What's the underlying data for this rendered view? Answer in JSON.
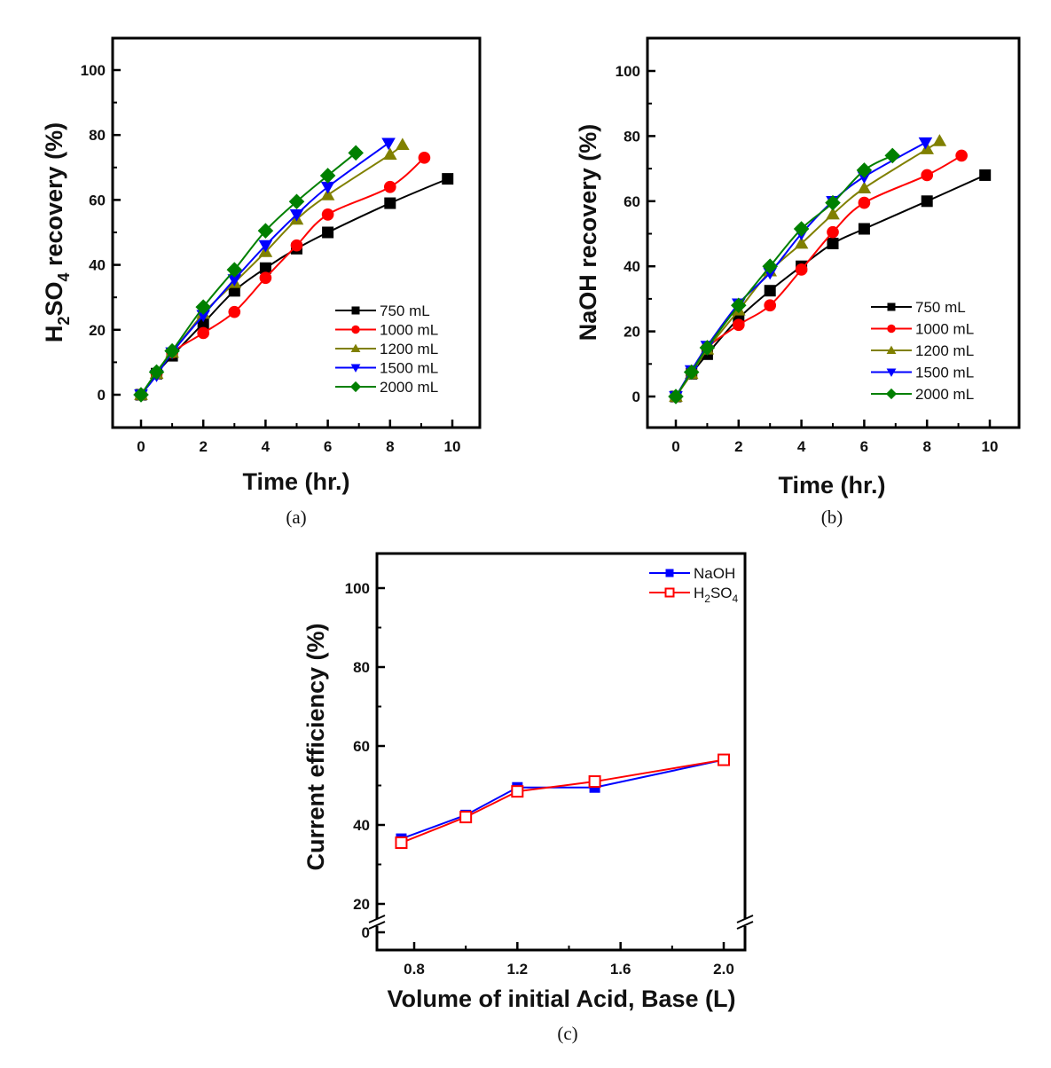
{
  "chart_data": [
    {
      "type": "line",
      "panel": "a",
      "caption": "(a)",
      "title": "",
      "xlabel": "Time (hr.)",
      "ylabel_parts": [
        "H",
        "2",
        "SO",
        "4",
        " recovery (%)"
      ],
      "ylabel": "H2SO4 recovery (%)",
      "xlim": [
        -0.7,
        10.6
      ],
      "ylim": [
        -10,
        110
      ],
      "xticks": [
        "0",
        "2",
        "4",
        "6",
        "8",
        "10"
      ],
      "xtick_values": [
        0,
        2,
        4,
        6,
        8,
        10
      ],
      "yticks": [
        "0",
        "20",
        "40",
        "60",
        "80",
        "100"
      ],
      "ytick_values": [
        0,
        20,
        40,
        60,
        80,
        100
      ],
      "grid": false,
      "legend_position": "bottom-right",
      "series": [
        {
          "name": "750 mL",
          "color": "#000000",
          "marker": "square",
          "x": [
            0,
            0.5,
            1,
            2,
            3,
            4,
            5,
            6,
            8,
            9.85
          ],
          "y": [
            0,
            6.5,
            12,
            22,
            32,
            39,
            45,
            50,
            59,
            66.5
          ]
        },
        {
          "name": "1000 mL",
          "color": "#ff0000",
          "marker": "circle",
          "x": [
            0,
            0.5,
            1,
            2,
            3,
            4,
            5,
            6,
            8,
            9.1
          ],
          "y": [
            0,
            6.5,
            13,
            19,
            25.5,
            36,
            46,
            55.5,
            64,
            73
          ]
        },
        {
          "name": "1200 mL",
          "color": "#808000",
          "marker": "triangle-up",
          "x": [
            0,
            0.5,
            1,
            2,
            3,
            4,
            5,
            6,
            8,
            8.4
          ],
          "y": [
            0,
            6.5,
            13,
            25,
            34.5,
            44,
            54,
            61.5,
            74,
            77
          ]
        },
        {
          "name": "1500 mL",
          "color": "#0000ff",
          "marker": "triangle-down",
          "x": [
            0,
            0.5,
            1,
            2,
            3,
            4,
            5,
            6,
            7.95
          ],
          "y": [
            0,
            6,
            13,
            24.5,
            35.5,
            46,
            55.5,
            64,
            77.5
          ]
        },
        {
          "name": "2000 mL",
          "color": "#008000",
          "marker": "diamond",
          "x": [
            0,
            0.5,
            1,
            2,
            3,
            4,
            5,
            6,
            6.9
          ],
          "y": [
            0,
            7,
            13.5,
            27,
            38.5,
            50.5,
            59.5,
            67.5,
            74.5
          ]
        }
      ]
    },
    {
      "type": "line",
      "panel": "b",
      "caption": "(b)",
      "title": "",
      "xlabel": "Time (hr.)",
      "ylabel": "NaOH recovery (%)",
      "xlim": [
        -0.7,
        10.6
      ],
      "ylim": [
        -10,
        110
      ],
      "xticks": [
        "0",
        "2",
        "4",
        "6",
        "8",
        "10"
      ],
      "xtick_values": [
        0,
        2,
        4,
        6,
        8,
        10
      ],
      "yticks": [
        "0",
        "20",
        "40",
        "60",
        "80",
        "100"
      ],
      "ytick_values": [
        0,
        20,
        40,
        60,
        80,
        100
      ],
      "grid": false,
      "legend_position": "bottom-right",
      "series": [
        {
          "name": "750 mL",
          "color": "#000000",
          "marker": "square",
          "x": [
            0,
            0.5,
            1,
            2,
            3,
            4,
            5,
            6,
            8,
            9.85
          ],
          "y": [
            0,
            7,
            13,
            24,
            32.5,
            40,
            47,
            51.5,
            60,
            68
          ]
        },
        {
          "name": "1000 mL",
          "color": "#ff0000",
          "marker": "circle",
          "x": [
            0,
            0.5,
            1,
            2,
            3,
            4,
            5,
            6,
            8,
            9.1
          ],
          "y": [
            0,
            7.5,
            15,
            22,
            28,
            39,
            50.5,
            59.5,
            68,
            74
          ]
        },
        {
          "name": "1200 mL",
          "color": "#808000",
          "marker": "triangle-up",
          "x": [
            0,
            0.5,
            1,
            2,
            3,
            4,
            5,
            6,
            8,
            8.4
          ],
          "y": [
            0,
            7,
            14.5,
            26.5,
            38.5,
            47,
            56,
            64,
            76,
            78.5
          ]
        },
        {
          "name": "1500 mL",
          "color": "#0000ff",
          "marker": "triangle-down",
          "x": [
            0,
            0.5,
            1,
            2,
            3,
            4,
            5,
            6,
            7.95
          ],
          "y": [
            0,
            8,
            15.5,
            28.5,
            38,
            50,
            60,
            67.5,
            78
          ]
        },
        {
          "name": "2000 mL",
          "color": "#008000",
          "marker": "diamond",
          "x": [
            0,
            0.5,
            1,
            2,
            3,
            4,
            5,
            6,
            6.9
          ],
          "y": [
            0,
            7.5,
            15,
            28,
            40,
            51.5,
            59.5,
            69.5,
            74
          ]
        }
      ]
    },
    {
      "type": "line",
      "panel": "c",
      "caption": "(c)",
      "title": "",
      "xlabel": "Volume of initial Acid, Base (L)",
      "ylabel": "Current efficiency (%)",
      "xlim": [
        0.66,
        2.08
      ],
      "ylim": [
        13,
        108
      ],
      "y_axis_break": true,
      "xticks": [
        "0.8",
        "1.2",
        "1.6",
        "2.0"
      ],
      "xtick_values": [
        0.8,
        1.2,
        1.6,
        2.0
      ],
      "yticks": [
        "0",
        "20",
        "40",
        "60",
        "80",
        "100"
      ],
      "ytick_values": [
        0,
        20,
        40,
        60,
        80,
        100
      ],
      "grid": false,
      "legend_position": "top-right",
      "series": [
        {
          "name": "NaOH",
          "color": "#0000ff",
          "marker": "square-filled",
          "x": [
            0.75,
            1.0,
            1.2,
            1.5,
            2.0
          ],
          "y": [
            36.5,
            42.5,
            49.5,
            49.5,
            56.5
          ]
        },
        {
          "name": "H2SO4",
          "name_parts": [
            "H",
            "2",
            "SO",
            "4"
          ],
          "color": "#ff0000",
          "marker": "square-open",
          "x": [
            0.75,
            1.0,
            1.2,
            1.5,
            2.0
          ],
          "y": [
            35.5,
            42,
            48.5,
            51,
            56.5
          ]
        }
      ]
    }
  ]
}
